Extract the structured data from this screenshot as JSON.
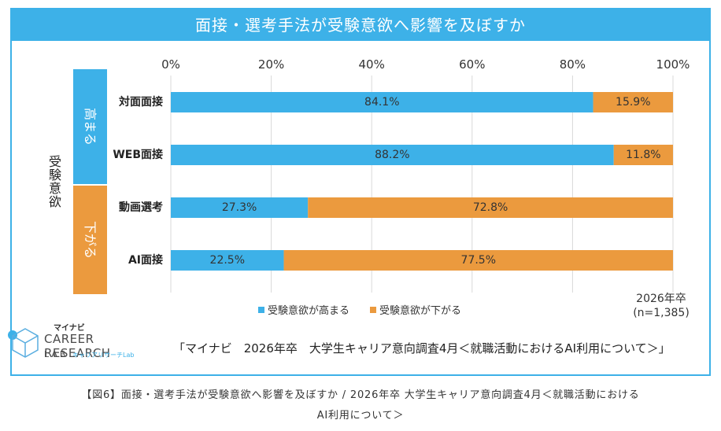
{
  "title": "面接・選考手法が受験意欲へ影響を及ぼすか",
  "source_text": "「マイナビ　2026年卒　大学生キャリア意向調査4月＜就職活動におけるAI利用について＞」",
  "caption_line1": "【図6】面接・選考手法が受験意欲へ影響を及ぼすか / 2026年卒 大学生キャリア意向調査4月＜就職活動における",
  "caption_line2": "AI利用について＞",
  "note_line1": "2026年卒",
  "note_line2": "(n=1,385)",
  "brand": {
    "maker": "マイナビ",
    "name_line1": "CAREER RESEARCH",
    "name_line2": "LAB",
    "name_kana": "キャリアリサーチLab"
  },
  "colors": {
    "accent": "#3db1e8",
    "increase": "#3db1e8",
    "decrease": "#eb9a3e"
  },
  "chart_data": {
    "type": "bar",
    "orientation": "horizontal-stacked-100",
    "categories": [
      "対面面接",
      "WEB面接",
      "動画選考",
      "AI面接"
    ],
    "series": [
      {
        "name": "受験意欲が高まる",
        "values": [
          84.1,
          88.2,
          27.3,
          22.5
        ]
      },
      {
        "name": "受験意欲が下がる",
        "values": [
          15.9,
          11.8,
          72.8,
          77.5
        ]
      }
    ],
    "value_labels": [
      [
        "84.1%",
        "15.9%"
      ],
      [
        "88.2%",
        "11.8%"
      ],
      [
        "27.3%",
        "72.8%"
      ],
      [
        "22.5%",
        "77.5%"
      ]
    ],
    "x_ticks": [
      "0%",
      "20%",
      "40%",
      "60%",
      "80%",
      "100%"
    ],
    "xlim": [
      0,
      100
    ],
    "ylabel": "受験意欲",
    "groups": [
      {
        "label": "高まる",
        "categories": [
          "対面面接",
          "WEB面接"
        ]
      },
      {
        "label": "下がる",
        "categories": [
          "動画選考",
          "AI面接"
        ]
      }
    ],
    "grid": true,
    "legend": "bottom"
  }
}
